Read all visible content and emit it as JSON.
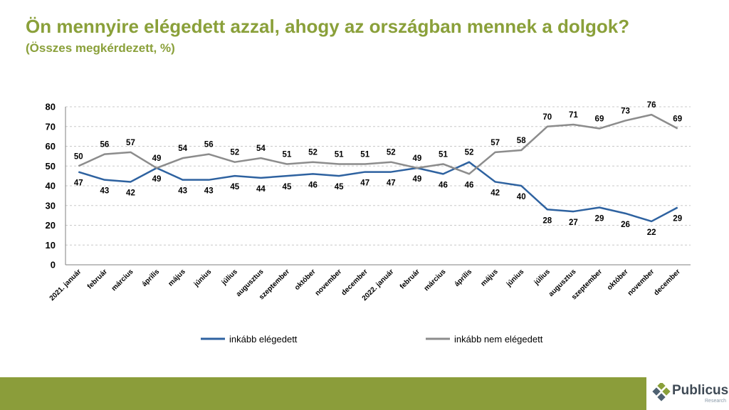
{
  "header": {
    "title": "Ön mennyire elégedett azzal, ahogy az országban mennek a dolgok?",
    "subtitle": "(Összes megkérdezett, %)"
  },
  "brand": {
    "name": "Publicus",
    "sub": "Research"
  },
  "colors": {
    "accent": "#8aa03a",
    "footer": "#8b9d3a",
    "series1": "#2e62a0",
    "series2": "#8c8c8c"
  },
  "chart_data": {
    "type": "line",
    "categories": [
      "2021. január",
      "február",
      "március",
      "április",
      "május",
      "június",
      "július",
      "augusztus",
      "szeptember",
      "október",
      "november",
      "december",
      "2022. január",
      "február",
      "március",
      "április",
      "május",
      "június",
      "július",
      "augusztus",
      "szeptember",
      "október",
      "november",
      "december"
    ],
    "series": [
      {
        "name": "inkább elégedett",
        "values": [
          47,
          43,
          42,
          49,
          43,
          43,
          45,
          44,
          45,
          46,
          45,
          47,
          47,
          49,
          46,
          52,
          42,
          40,
          28,
          27,
          29,
          26,
          22,
          29
        ]
      },
      {
        "name": "inkább nem elégedett",
        "values": [
          50,
          56,
          57,
          49,
          54,
          56,
          52,
          54,
          51,
          52,
          51,
          51,
          52,
          49,
          51,
          46,
          57,
          58,
          70,
          71,
          69,
          73,
          76,
          69
        ]
      }
    ],
    "yticks": [
      0,
      10,
      20,
      30,
      40,
      50,
      60,
      70,
      80
    ],
    "ylim": [
      0,
      80
    ],
    "grid": true,
    "legend": "bottom"
  }
}
